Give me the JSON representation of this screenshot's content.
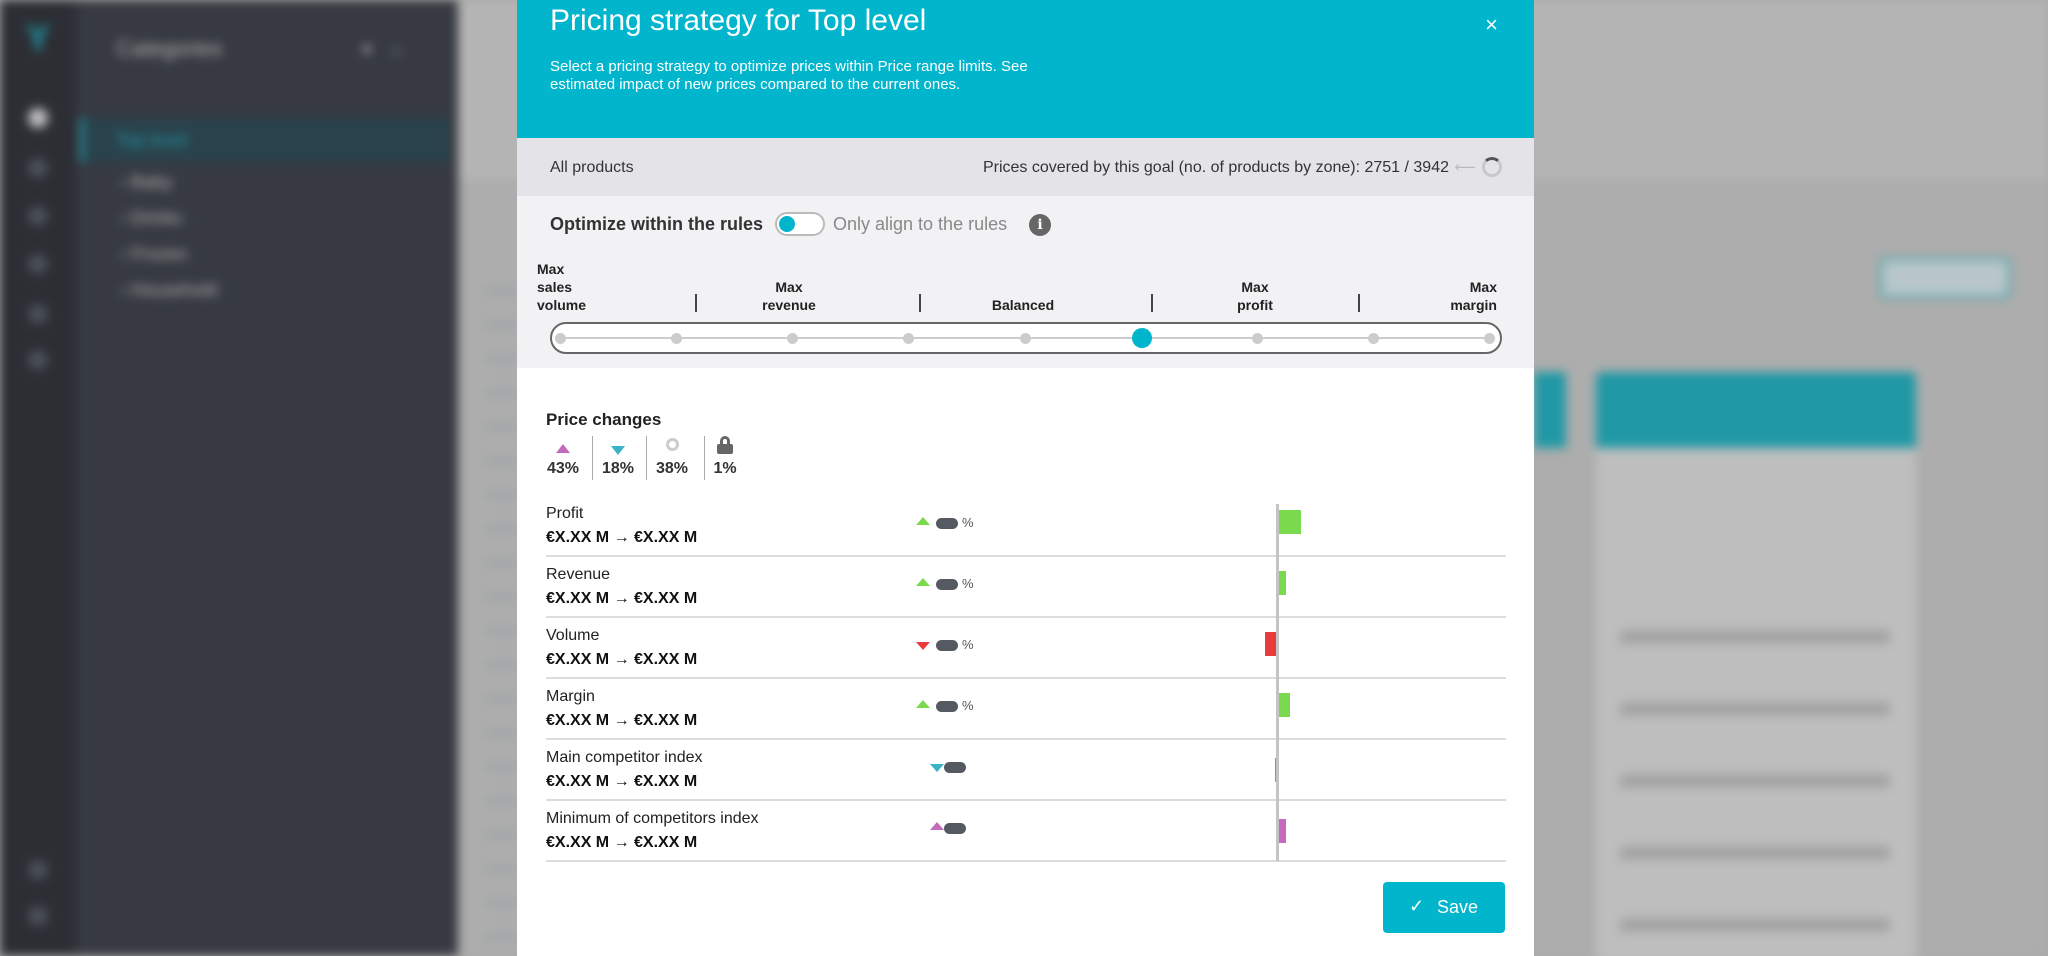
{
  "modal": {
    "title": "Pricing strategy for Top level",
    "description": "Select a pricing strategy to optimize prices within Price range limits. See estimated impact of new prices compared to the current ones.",
    "close_icon": "×",
    "scope": "All products",
    "coverage": "Prices covered by this goal (no. of products by zone): 2751 / 3942",
    "optimize_label": "Optimize within the rules",
    "optimize_toggle_on": true,
    "align_label": "Only align to the rules",
    "info_glyph": "i",
    "slider": {
      "labels": [
        "Max sales volume",
        "Max revenue",
        "Balanced",
        "Max profit",
        "Max margin"
      ],
      "label_lines": [
        [
          "Max",
          "sales",
          "volume"
        ],
        [
          "Max",
          "revenue"
        ],
        [
          "Balanced"
        ],
        [
          "Max",
          "profit"
        ],
        [
          "Max",
          "margin"
        ]
      ],
      "steps": 9,
      "selected_index": 5
    },
    "price_changes": {
      "title": "Price changes",
      "items": [
        {
          "icon": "price-up-icon",
          "value": "43%"
        },
        {
          "icon": "price-down-icon",
          "value": "18%"
        },
        {
          "icon": "unchanged-icon",
          "value": "38%"
        },
        {
          "icon": "locked-icon",
          "value": "1%"
        }
      ]
    },
    "kpis": [
      {
        "name": "Profit",
        "values": "€X.XX M → €X.XX M",
        "direction": "up",
        "pct": "%",
        "impact": 0.6
      },
      {
        "name": "Revenue",
        "values": "€X.XX M → €X.XX M",
        "direction": "up",
        "pct": "%",
        "impact": 0.2
      },
      {
        "name": "Volume",
        "values": "€X.XX M → €X.XX M",
        "direction": "down",
        "pct": "%",
        "impact": -0.4
      },
      {
        "name": "Margin",
        "values": "€X.XX M → €X.XX M",
        "direction": "up",
        "pct": "%",
        "impact": 0.3
      },
      {
        "name": "Main competitor index",
        "values": "€X.XX M → €X.XX M",
        "direction": "down",
        "pct": "",
        "impact": -0.1
      },
      {
        "name": "Minimum of competitors index",
        "values": "€X.XX M → €X.XX M",
        "direction": "up",
        "pct": "",
        "impact": 0.2
      }
    ],
    "colors": {
      "accent": "#00b5cc",
      "positive": "#7bd94e",
      "negative": "#e83c3c",
      "teal": "#3bb3c6",
      "pink": "#c56bbd"
    },
    "save_label": "Save",
    "save_icon": "✓"
  },
  "background": {
    "categories_title": "Categories",
    "selected_category": "Top level",
    "categories": [
      "Baby",
      "Drinks",
      "Frozen",
      "Household"
    ]
  }
}
